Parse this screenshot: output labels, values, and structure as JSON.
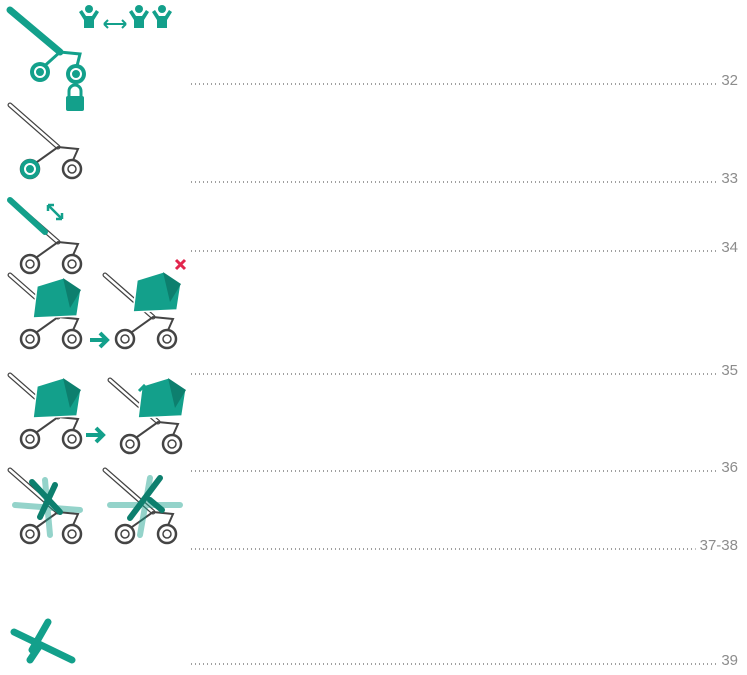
{
  "entries": [
    {
      "page": "32"
    },
    {
      "page": "33"
    },
    {
      "page": "34"
    },
    {
      "page": "35"
    },
    {
      "page": "36"
    },
    {
      "page": "37-38"
    },
    {
      "page": "39"
    }
  ]
}
